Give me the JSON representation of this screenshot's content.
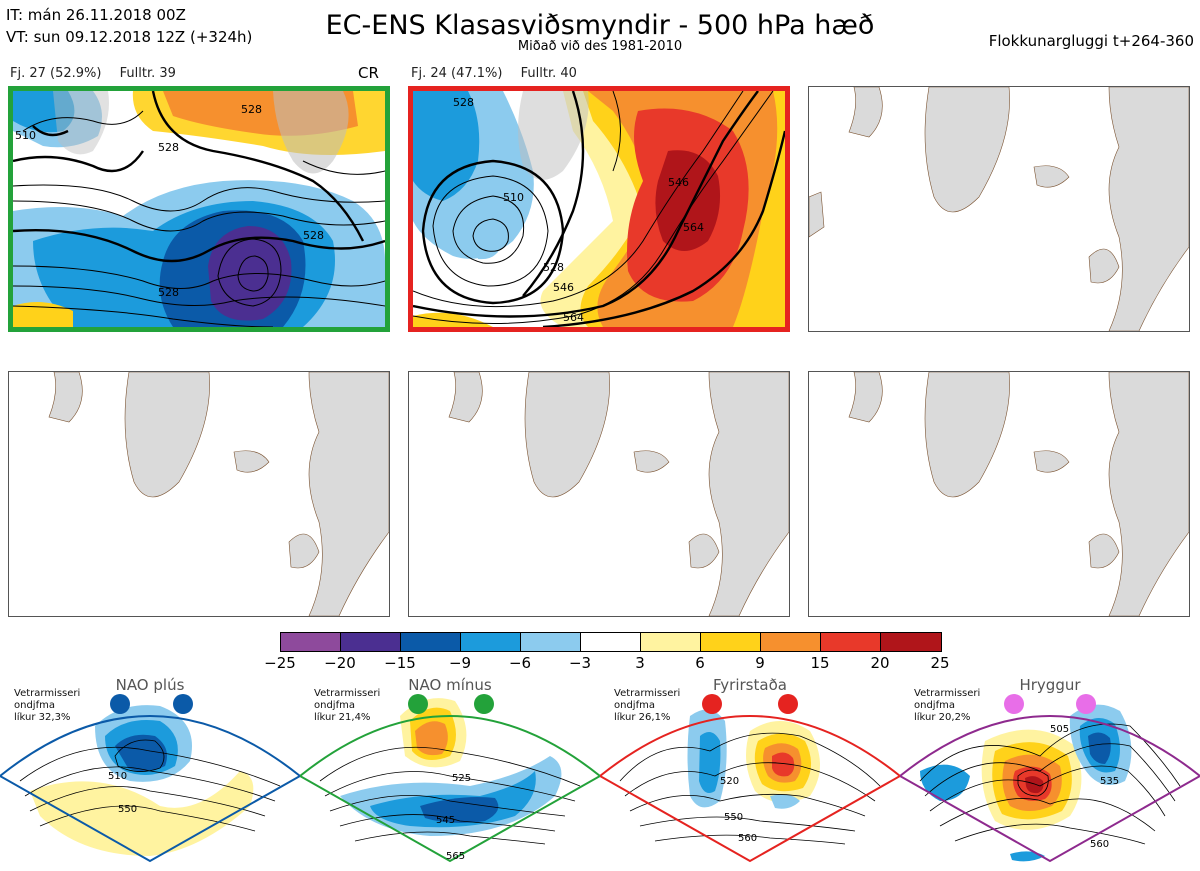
{
  "header": {
    "it_line": "IT: mán 26.11.2018 00Z",
    "vt_line": "VT: sun 09.12.2018 12Z  (+324h)",
    "title": "EC-ENS Klasasviðsmyndir - 500 hPa hæð",
    "subtitle": "Miðað við des 1981-2010",
    "window": "Flokkunargluggi t+264-360"
  },
  "panels": [
    {
      "fj": "Fj. 27 (52.9%)",
      "fulltr": "Fulltr. 39",
      "tag": "CR",
      "frame_color": "#23a23a",
      "contour_labels": [
        "528",
        "528",
        "528",
        "528",
        "510"
      ]
    },
    {
      "fj": "Fj. 24 (47.1%)",
      "fulltr": "Fulltr. 40",
      "frame_color": "#e52320",
      "contour_labels": [
        "528",
        "546",
        "510",
        "528",
        "546",
        "564",
        "564"
      ]
    }
  ],
  "colorbar": {
    "colors": [
      "#8e4a9c",
      "#4b2f91",
      "#0b5aa8",
      "#1c9bdc",
      "#8ccbee",
      "#ffffff",
      "#fff3a0",
      "#ffd21a",
      "#f6902e",
      "#e8392a",
      "#b0151a"
    ],
    "ticks": [
      "−25",
      "−20",
      "−15",
      "−9",
      "−6",
      "−3",
      "3",
      "6",
      "9",
      "15",
      "20",
      "25"
    ]
  },
  "regimes": [
    {
      "name": "NAO plús",
      "note": [
        "Vetrarmisseri",
        "ondjfma",
        "líkur 32,3%"
      ],
      "color": "#0b5aa8",
      "labels": [
        "510",
        "550"
      ]
    },
    {
      "name": "NAO mínus",
      "note": [
        "Vetrarmisseri",
        "ondjfma",
        "líkur 21,4%"
      ],
      "color": "#23a23a",
      "labels": [
        "525",
        "545",
        "565"
      ]
    },
    {
      "name": "Fyrirstaða",
      "note": [
        "Vetrarmisseri",
        "ondjfma",
        "líkur 26,1%"
      ],
      "color": "#e52320",
      "labels": [
        "520",
        "550",
        "560"
      ]
    },
    {
      "name": "Hryggur",
      "note": [
        "Vetrarmisseri",
        "ondjfma",
        "líkur 20,2%"
      ],
      "color": "#8e2a8e",
      "labels": [
        "505",
        "535",
        "560"
      ]
    }
  ]
}
